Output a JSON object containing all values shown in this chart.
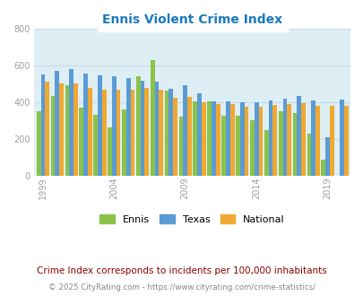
{
  "title": "Ennis Violent Crime Index",
  "subtitle": "Crime Index corresponds to incidents per 100,000 inhabitants",
  "footer": "© 2025 CityRating.com - https://www.cityrating.com/crime-statistics/",
  "years": [
    1999,
    2000,
    2001,
    2002,
    2003,
    2004,
    2005,
    2006,
    2007,
    2008,
    2009,
    2010,
    2011,
    2012,
    2013,
    2014,
    2015,
    2016,
    2017,
    2018,
    2019,
    2020
  ],
  "ennis": [
    350,
    435,
    490,
    370,
    330,
    265,
    360,
    540,
    630,
    460,
    320,
    405,
    405,
    325,
    325,
    300,
    250,
    350,
    340,
    230,
    90,
    0
  ],
  "texas": [
    550,
    570,
    580,
    555,
    545,
    540,
    530,
    515,
    510,
    470,
    490,
    450,
    405,
    405,
    400,
    400,
    410,
    420,
    435,
    410,
    210,
    415
  ],
  "national": [
    510,
    500,
    500,
    475,
    465,
    465,
    465,
    475,
    465,
    425,
    430,
    400,
    390,
    390,
    375,
    375,
    385,
    390,
    395,
    380,
    380,
    380
  ],
  "ennis_color": "#8bc34a",
  "texas_color": "#5b9bd5",
  "national_color": "#f0a830",
  "fig_bg_color": "#ffffff",
  "plot_bg_color": "#ddeef4",
  "ylim": [
    0,
    800
  ],
  "yticks": [
    0,
    200,
    400,
    600,
    800
  ],
  "xtick_years": [
    1999,
    2004,
    2009,
    2014,
    2019
  ],
  "title_color": "#1a7abf",
  "subtitle_color": "#8b0000",
  "subtitle_italic": false,
  "footer_color": "#888888",
  "tick_color": "#a0a0a0",
  "grid_color": "#c8dde6"
}
